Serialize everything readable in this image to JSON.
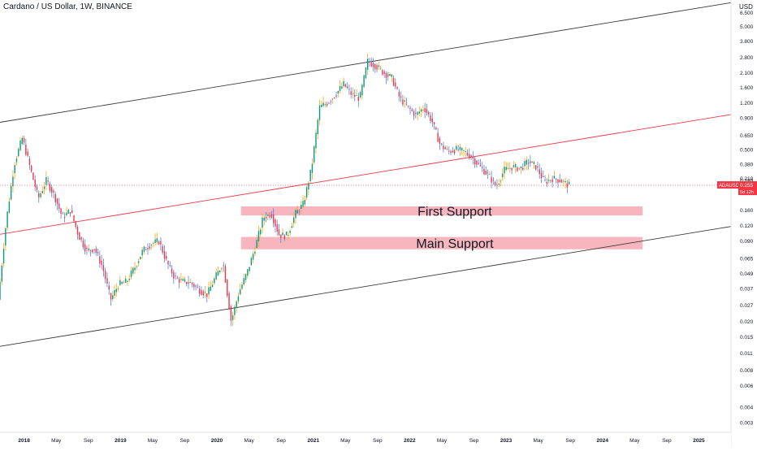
{
  "header": {
    "title": "Cardano / US Dollar, 1W, BINANCE"
  },
  "price_axis": {
    "currency": "USD",
    "ticks": [
      "6.500",
      "5.000",
      "3.800",
      "2.800",
      "2.100",
      "1.600",
      "1.200",
      "0.900",
      "0.650",
      "0.500",
      "0.380",
      "0.280",
      "0.160",
      "0.120",
      "0.090",
      "0.065",
      "0.049",
      "0.037",
      "0.027",
      "0.020",
      "0.015",
      "0.011",
      "0.008",
      "0.006",
      "0.004",
      "0.003"
    ],
    "current": {
      "symbol": "ADAUSD",
      "price": "0.255",
      "countdown": "5d 12h"
    },
    "partially_hidden_label": "0.210"
  },
  "time_axis": {
    "ticks": [
      {
        "label": "2018",
        "bold": true
      },
      {
        "label": "May",
        "bold": false
      },
      {
        "label": "Sep",
        "bold": false
      },
      {
        "label": "2019",
        "bold": true
      },
      {
        "label": "May",
        "bold": false
      },
      {
        "label": "Sep",
        "bold": false
      },
      {
        "label": "2020",
        "bold": true
      },
      {
        "label": "May",
        "bold": false
      },
      {
        "label": "Sep",
        "bold": false
      },
      {
        "label": "2021",
        "bold": true
      },
      {
        "label": "May",
        "bold": false
      },
      {
        "label": "Sep",
        "bold": false
      },
      {
        "label": "2022",
        "bold": true
      },
      {
        "label": "May",
        "bold": false
      },
      {
        "label": "Sep",
        "bold": false
      },
      {
        "label": "2023",
        "bold": true
      },
      {
        "label": "May",
        "bold": false
      },
      {
        "label": "Sep",
        "bold": false
      },
      {
        "label": "2024",
        "bold": true
      },
      {
        "label": "May",
        "bold": false
      },
      {
        "label": "Sep",
        "bold": false
      },
      {
        "label": "2025",
        "bold": true
      }
    ]
  },
  "zones": [
    {
      "label": "First Support",
      "from_price": 0.145,
      "to_price": 0.172,
      "from_date": "2020-04",
      "to_date": "2024-06"
    },
    {
      "label": "Main Support",
      "from_price": 0.077,
      "to_price": 0.097,
      "from_date": "2020-04",
      "to_date": "2024-06"
    }
  ],
  "colors": {
    "up": "#089981",
    "down": "#f23645",
    "wick_up": "#f5a623",
    "wick_down": "#5b7fde",
    "zone": "#f7b6bd",
    "channel": "#3a3a3a",
    "midline": "#f23645",
    "price_line": "#f23645"
  },
  "chart_data": {
    "type": "candlestick",
    "title": "Cardano / US Dollar, 1W, BINANCE",
    "y_scale": "log",
    "y_unit": "USD",
    "ylim": [
      0.0025,
      8.2
    ],
    "xlim": [
      "2017-10",
      "2025-05"
    ],
    "last_price": 0.255,
    "price_path": [
      {
        "date": "2017-10",
        "close": 0.03
      },
      {
        "date": "2017-11",
        "close": 0.13
      },
      {
        "date": "2017-12",
        "close": 0.38
      },
      {
        "date": "2018-01",
        "close": 0.62
      },
      {
        "date": "2018-02",
        "close": 0.35
      },
      {
        "date": "2018-03",
        "close": 0.2
      },
      {
        "date": "2018-04",
        "close": 0.28
      },
      {
        "date": "2018-05",
        "close": 0.21
      },
      {
        "date": "2018-06",
        "close": 0.14
      },
      {
        "date": "2018-07",
        "close": 0.16
      },
      {
        "date": "2018-08",
        "close": 0.1
      },
      {
        "date": "2018-09",
        "close": 0.075
      },
      {
        "date": "2018-10",
        "close": 0.078
      },
      {
        "date": "2018-11",
        "close": 0.055
      },
      {
        "date": "2018-12",
        "close": 0.03
      },
      {
        "date": "2019-01",
        "close": 0.04
      },
      {
        "date": "2019-02",
        "close": 0.042
      },
      {
        "date": "2019-03",
        "close": 0.055
      },
      {
        "date": "2019-04",
        "close": 0.075
      },
      {
        "date": "2019-05",
        "close": 0.085
      },
      {
        "date": "2019-06",
        "close": 0.09
      },
      {
        "date": "2019-07",
        "close": 0.06
      },
      {
        "date": "2019-08",
        "close": 0.045
      },
      {
        "date": "2019-09",
        "close": 0.042
      },
      {
        "date": "2019-10",
        "close": 0.041
      },
      {
        "date": "2019-11",
        "close": 0.036
      },
      {
        "date": "2019-12",
        "close": 0.033
      },
      {
        "date": "2020-01",
        "close": 0.045
      },
      {
        "date": "2020-02",
        "close": 0.06
      },
      {
        "date": "2020-03",
        "close": 0.02
      },
      {
        "date": "2020-04",
        "close": 0.035
      },
      {
        "date": "2020-05",
        "close": 0.05
      },
      {
        "date": "2020-06",
        "close": 0.08
      },
      {
        "date": "2020-07",
        "close": 0.14
      },
      {
        "date": "2020-08",
        "close": 0.15
      },
      {
        "date": "2020-09",
        "close": 0.1
      },
      {
        "date": "2020-10",
        "close": 0.1
      },
      {
        "date": "2020-11",
        "close": 0.15
      },
      {
        "date": "2020-12",
        "close": 0.18
      },
      {
        "date": "2021-01",
        "close": 0.35
      },
      {
        "date": "2021-02",
        "close": 1.1
      },
      {
        "date": "2021-03",
        "close": 1.2
      },
      {
        "date": "2021-04",
        "close": 1.4
      },
      {
        "date": "2021-05",
        "close": 1.7
      },
      {
        "date": "2021-06",
        "close": 1.4
      },
      {
        "date": "2021-07",
        "close": 1.3
      },
      {
        "date": "2021-08",
        "close": 2.6
      },
      {
        "date": "2021-09",
        "close": 2.4
      },
      {
        "date": "2021-10",
        "close": 2.1
      },
      {
        "date": "2021-11",
        "close": 1.9
      },
      {
        "date": "2021-12",
        "close": 1.3
      },
      {
        "date": "2022-01",
        "close": 1.1
      },
      {
        "date": "2022-02",
        "close": 0.95
      },
      {
        "date": "2022-03",
        "close": 1.1
      },
      {
        "date": "2022-04",
        "close": 0.85
      },
      {
        "date": "2022-05",
        "close": 0.55
      },
      {
        "date": "2022-06",
        "close": 0.48
      },
      {
        "date": "2022-07",
        "close": 0.5
      },
      {
        "date": "2022-08",
        "close": 0.48
      },
      {
        "date": "2022-09",
        "close": 0.43
      },
      {
        "date": "2022-10",
        "close": 0.36
      },
      {
        "date": "2022-11",
        "close": 0.31
      },
      {
        "date": "2022-12",
        "close": 0.25
      },
      {
        "date": "2023-01",
        "close": 0.34
      },
      {
        "date": "2023-02",
        "close": 0.36
      },
      {
        "date": "2023-03",
        "close": 0.35
      },
      {
        "date": "2023-04",
        "close": 0.4
      },
      {
        "date": "2023-05",
        "close": 0.36
      },
      {
        "date": "2023-06",
        "close": 0.27
      },
      {
        "date": "2023-07",
        "close": 0.29
      },
      {
        "date": "2023-08",
        "close": 0.28
      },
      {
        "date": "2023-09",
        "close": 0.255
      }
    ],
    "trendlines": [
      {
        "name": "channel-upper",
        "p1": {
          "date": "2017-10",
          "price": 0.83
        },
        "p2": {
          "date": "2025-05",
          "price": 7.8
        }
      },
      {
        "name": "channel-lower",
        "p1": {
          "date": "2017-10",
          "price": 0.0125
        },
        "p2": {
          "date": "2025-05",
          "price": 0.118
        }
      },
      {
        "name": "channel-middle",
        "p1": {
          "date": "2017-10",
          "price": 0.102
        },
        "p2": {
          "date": "2025-05",
          "price": 0.96
        }
      }
    ]
  }
}
